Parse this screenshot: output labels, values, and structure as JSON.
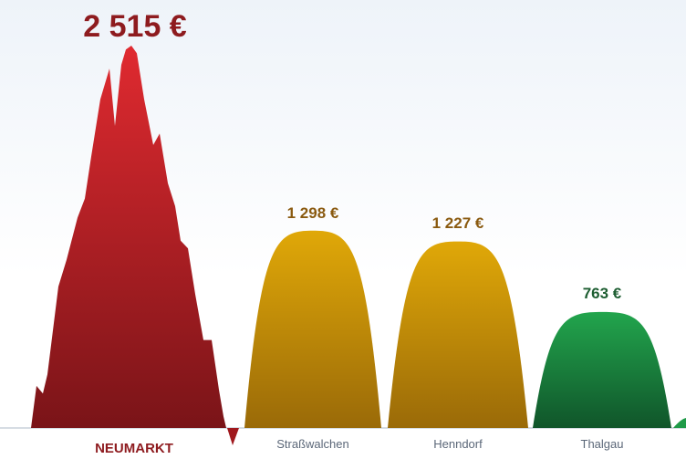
{
  "chart_data": {
    "type": "area",
    "categories": [
      "NEUMARKT",
      "Straßwalchen",
      "Henndorf",
      "Thalgau"
    ],
    "values": [
      2515,
      1298,
      1227,
      763
    ],
    "value_labels": [
      "2 515 €",
      "1 298 €",
      "1 227 €",
      "763 €"
    ],
    "unit": "€",
    "colors": {
      "NEUMARKT": "#c4212b",
      "Straßwalchen": "#d79a08",
      "Henndorf": "#d79a08",
      "Thalgau": "#1f9a48",
      "highlight_label": "#8e1b1f",
      "muted_label": "#5b6778",
      "mid_value": "#8a5a10",
      "low_value": "#1e5e32"
    },
    "highlight": "NEUMARKT"
  }
}
